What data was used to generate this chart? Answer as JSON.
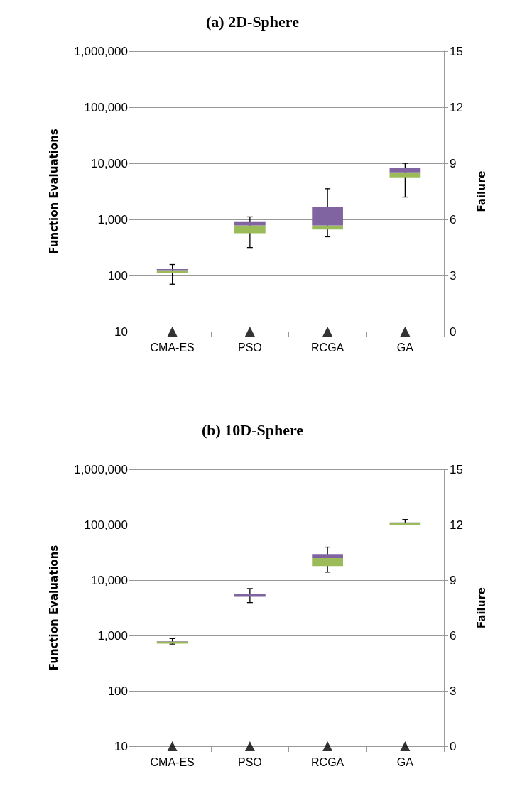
{
  "chart_data": [
    {
      "type": "box",
      "title": "(a) 2D-Sphere",
      "ylabel": "Function Evaluations",
      "y2label": "Failure",
      "categories": [
        "CMA-ES",
        "PSO",
        "RCGA",
        "GA"
      ],
      "log": "y",
      "grid": "y",
      "ylim": [
        10,
        1000000
      ],
      "yticks": [
        {
          "value": 10,
          "label": "10"
        },
        {
          "value": 100,
          "label": "100"
        },
        {
          "value": 1000,
          "label": "1,000"
        },
        {
          "value": 10000,
          "label": "10,000"
        },
        {
          "value": 100000,
          "label": "100,000"
        },
        {
          "value": 1000000,
          "label": "1,000,000"
        }
      ],
      "y2lim": [
        0,
        15
      ],
      "y2ticks": [
        0,
        3,
        6,
        9,
        12,
        15
      ],
      "series": [
        {
          "color": "#8064a2",
          "colors": [
            "#9bbb59",
            "#9bbb59",
            "#9bbb59",
            "#9bbb59"
          ],
          "boxes": [
            {
              "low": 70,
              "q1": 111,
              "median": 124,
              "q3": 130,
              "high": 157
            },
            {
              "low": 315,
              "q1": 565,
              "median": 780,
              "q3": 920,
              "high": 1110
            },
            {
              "low": 490,
              "q1": 660,
              "median": 780,
              "q3": 1660,
              "high": 3520
            },
            {
              "low": 2500,
              "q1": 5610,
              "median": 6920,
              "q3": 8340,
              "high": 10000
            }
          ]
        },
        {
          "type": "scatter",
          "axis": "y2",
          "marker": "triangle",
          "color": "#000000",
          "x": [
            "CMA-ES",
            "PSO",
            "RCGA",
            "GA"
          ],
          "values": [
            0,
            0,
            0,
            0
          ]
        }
      ]
    },
    {
      "type": "box",
      "title": "(b) 10D-Sphere",
      "ylabel": "Function Evaluations",
      "y2label": "Failure",
      "categories": [
        "CMA-ES",
        "PSO",
        "RCGA",
        "GA"
      ],
      "log": "y",
      "grid": "y",
      "ylim": [
        10,
        1000000
      ],
      "yticks": [
        {
          "value": 10,
          "label": "10"
        },
        {
          "value": 100,
          "label": "100"
        },
        {
          "value": 1000,
          "label": "1,000"
        },
        {
          "value": 10000,
          "label": "10,000"
        },
        {
          "value": 100000,
          "label": "100,000"
        },
        {
          "value": 1000000,
          "label": "1,000,000"
        }
      ],
      "y2lim": [
        0,
        15
      ],
      "y2ticks": [
        0,
        3,
        6,
        9,
        12,
        15
      ],
      "series": [
        {
          "color": "#8064a2",
          "colors": [
            "#9bbb59",
            "#9bbb59",
            "#9bbb59",
            "#9bbb59"
          ],
          "boxes": [
            {
              "low": 700,
              "q1": 710,
              "median": 780,
              "q3": 790,
              "high": 880
            },
            {
              "low": 3930,
              "q1": 4990,
              "median": 5000,
              "q3": 5530,
              "high": 7030
            },
            {
              "low": 13900,
              "q1": 17900,
              "median": 24900,
              "q3": 29500,
              "high": 39400
            },
            {
              "low": 100000,
              "q1": 100000,
              "median": 109000,
              "q3": 110000,
              "high": 124000
            }
          ]
        },
        {
          "type": "scatter",
          "axis": "y2",
          "marker": "triangle",
          "color": "#000000",
          "x": [
            "CMA-ES",
            "PSO",
            "RCGA",
            "GA"
          ],
          "values": [
            0,
            0,
            0,
            0
          ]
        }
      ]
    }
  ]
}
